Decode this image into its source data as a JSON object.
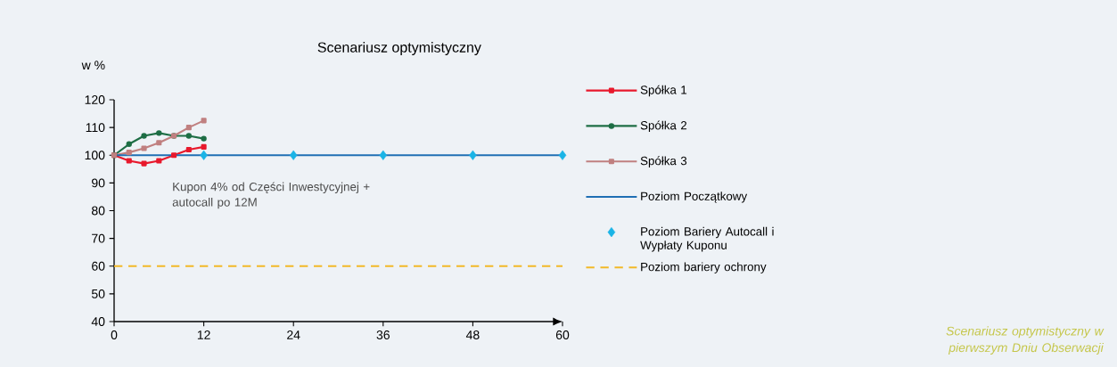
{
  "chart_data": {
    "type": "line",
    "title": "Scenariusz optymistyczny",
    "ylabel": "w %",
    "xlim": [
      0,
      60
    ],
    "ylim": [
      40,
      120
    ],
    "xticks": [
      0,
      12,
      24,
      36,
      48,
      60
    ],
    "yticks": [
      40,
      50,
      60,
      70,
      80,
      90,
      100,
      110,
      120
    ],
    "legend": "right",
    "grid": false,
    "series": [
      {
        "name": "Spółka 1",
        "color": "#e8192c",
        "marker": "square",
        "x": [
          0,
          2,
          4,
          6,
          8,
          10,
          12
        ],
        "values": [
          100,
          98,
          97,
          98,
          100,
          102,
          103
        ]
      },
      {
        "name": "Spółka 2",
        "color": "#1e6e45",
        "marker": "circle",
        "x": [
          0,
          2,
          4,
          6,
          8,
          10,
          12
        ],
        "values": [
          100,
          104,
          107,
          108,
          107,
          107,
          106
        ]
      },
      {
        "name": "Spółka 3",
        "color": "#c08080",
        "marker": "square",
        "x": [
          0,
          2,
          4,
          6,
          8,
          10,
          12
        ],
        "values": [
          100,
          101,
          102.5,
          104.5,
          107,
          110,
          112.5
        ]
      },
      {
        "name": "Poziom Początkowy",
        "color": "#1f6fb4",
        "marker": "none",
        "x": [
          0,
          60
        ],
        "values": [
          100,
          100
        ]
      },
      {
        "name": "Poziom Bariery Autocall i Wypłaty Kuponu",
        "type": "scatter",
        "color": "#1ab4e6",
        "marker": "diamond",
        "x": [
          12,
          24,
          36,
          48,
          60
        ],
        "values": [
          100,
          100,
          100,
          100,
          100
        ]
      },
      {
        "name": "Poziom bariery ochrony",
        "color": "#f2b928",
        "marker": "none",
        "line_style": "dashed",
        "x": [
          0,
          60
        ],
        "values": [
          60,
          60
        ]
      }
    ],
    "annotations": [
      "Kupon 4% od Części Inwestycyjnej + autocall po 12M",
      "Scenariusz optymistyczny w pierwszym Dniu Obserwacji"
    ]
  }
}
